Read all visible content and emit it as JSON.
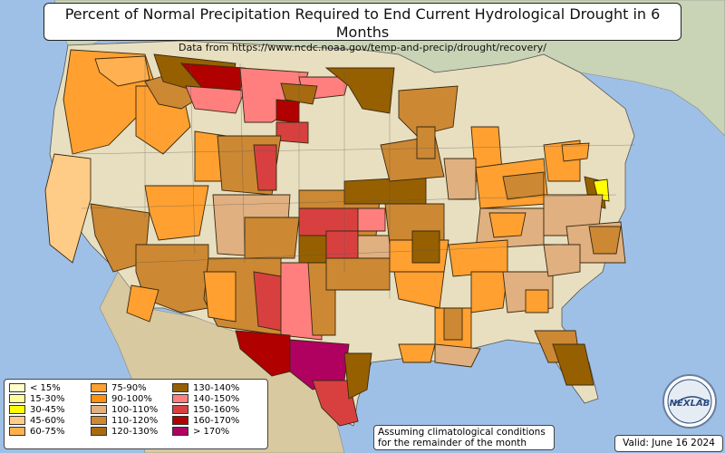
{
  "title": "Percent of Normal Precipitation Required to End Current Hydrological Drought in 6 Months",
  "subtitle": "Data from https://www.ncdc.noaa.gov/temp-and-precip/drought/recovery/",
  "legend": [
    {
      "label": "< 15%",
      "color": "#ffffcc"
    },
    {
      "label": "15-30%",
      "color": "#ffff99"
    },
    {
      "label": "30-45%",
      "color": "#ffff00"
    },
    {
      "label": "45-60%",
      "color": "#ffcc88"
    },
    {
      "label": "60-75%",
      "color": "#ffb050"
    },
    {
      "label": "75-90%",
      "color": "#ffa030"
    },
    {
      "label": "90-100%",
      "color": "#ff9010"
    },
    {
      "label": "100-110%",
      "color": "#e0b080"
    },
    {
      "label": "110-120%",
      "color": "#cc8833"
    },
    {
      "label": "120-130%",
      "color": "#a86a10"
    },
    {
      "label": "130-140%",
      "color": "#966000"
    },
    {
      "label": "140-150%",
      "color": "#ff7f7f"
    },
    {
      "label": "150-160%",
      "color": "#d84040"
    },
    {
      "label": "160-170%",
      "color": "#b00000"
    },
    {
      "label": "> 170%",
      "color": "#b00060"
    }
  ],
  "note_line1": "Assuming climatological conditions",
  "note_line2": "for the remainder of the month",
  "valid": "Valid: June 16 2024",
  "logo_text": "NEXLAB"
}
